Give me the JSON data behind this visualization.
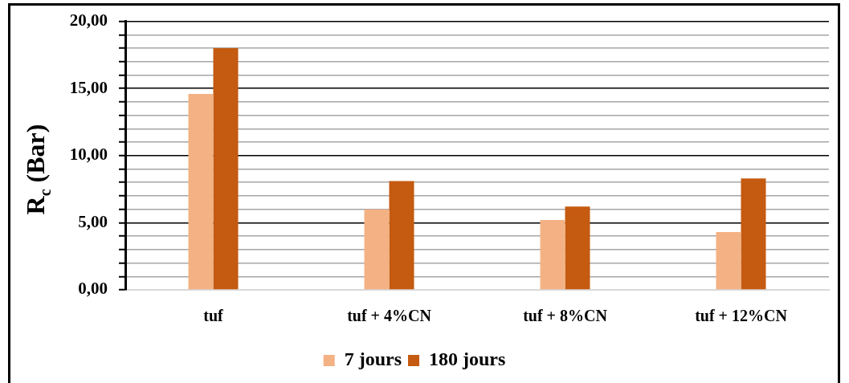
{
  "chart_data": {
    "type": "bar",
    "ylabel": "R$_{c}$ (Bar)",
    "categories": [
      "tuf",
      "tuf + 4%CN",
      "tuf + 8%CN",
      "tuf + 12%CN"
    ],
    "series": [
      {
        "name": "7 jours",
        "color": "#f4b183",
        "values": [
          14.6,
          6.0,
          5.2,
          4.3
        ]
      },
      {
        "name": "180 jours",
        "color": "#c55a11",
        "values": [
          18.0,
          8.1,
          6.2,
          8.3
        ]
      }
    ],
    "ylim": [
      0,
      20
    ],
    "yticks": [
      {
        "value": 0,
        "label": "0,00"
      },
      {
        "value": 1,
        "label": null
      },
      {
        "value": 2,
        "label": null
      },
      {
        "value": 3,
        "label": null
      },
      {
        "value": 4,
        "label": null
      },
      {
        "value": 5,
        "label": "5,00"
      },
      {
        "value": 6,
        "label": null
      },
      {
        "value": 7,
        "label": null
      },
      {
        "value": 8,
        "label": null
      },
      {
        "value": 9,
        "label": null
      },
      {
        "value": 10,
        "label": "10,00"
      },
      {
        "value": 11,
        "label": null
      },
      {
        "value": 12,
        "label": null
      },
      {
        "value": 13,
        "label": null
      },
      {
        "value": 14,
        "label": null
      },
      {
        "value": 15,
        "label": "15,00"
      },
      {
        "value": 16,
        "label": null
      },
      {
        "value": 17,
        "label": null
      },
      {
        "value": 18,
        "label": null
      },
      {
        "value": 19,
        "label": null
      },
      {
        "value": 20,
        "label": "20,00"
      }
    ],
    "grid": "y",
    "legend": "bottom"
  }
}
